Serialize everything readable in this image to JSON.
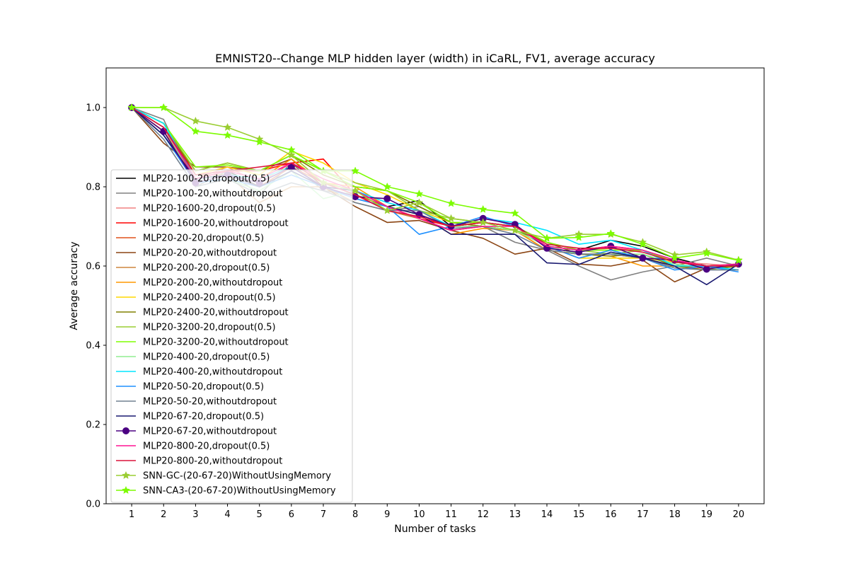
{
  "chart_data": {
    "type": "line",
    "title": "EMNIST20--Change MLP hidden layer (width) in iCaRL, FV1, average accuracy",
    "xlabel": "Number of tasks",
    "ylabel": "Average accuracy",
    "x": [
      1,
      2,
      3,
      4,
      5,
      6,
      7,
      8,
      9,
      10,
      11,
      12,
      13,
      14,
      15,
      16,
      17,
      18,
      19,
      20
    ],
    "xlim": [
      0.2,
      20.8
    ],
    "ylim": [
      0.0,
      1.1
    ],
    "yticks": [
      0.0,
      0.2,
      0.4,
      0.6,
      0.8,
      1.0
    ],
    "ytick_labels": [
      "0.0",
      "0.2",
      "0.4",
      "0.6",
      "0.8",
      "1.0"
    ],
    "grid": false,
    "legend_position": "center-left",
    "series": [
      {
        "name": "MLP20-100-20,dropout(0.5)",
        "color": "#000000",
        "marker": "none",
        "values": [
          1.0,
          0.93,
          0.82,
          0.84,
          0.8,
          0.85,
          0.8,
          0.79,
          0.75,
          0.765,
          0.7,
          0.71,
          0.7,
          0.65,
          0.64,
          0.665,
          0.65,
          0.62,
          0.6,
          0.6
        ]
      },
      {
        "name": "MLP20-100-20,withoutdropout",
        "color": "#808080",
        "marker": "none",
        "values": [
          1.0,
          0.97,
          0.8,
          0.84,
          0.78,
          0.86,
          0.79,
          0.78,
          0.74,
          0.75,
          0.71,
          0.7,
          0.66,
          0.64,
          0.6,
          0.565,
          0.585,
          0.6,
          0.62,
          0.6
        ]
      },
      {
        "name": "MLP20-1600-20,dropout(0.5)",
        "color": "#f08080",
        "marker": "none",
        "values": [
          1.0,
          0.95,
          0.82,
          0.85,
          0.81,
          0.86,
          0.81,
          0.79,
          0.75,
          0.73,
          0.7,
          0.71,
          0.7,
          0.65,
          0.64,
          0.645,
          0.64,
          0.61,
          0.605,
          0.6
        ]
      },
      {
        "name": "MLP20-1600-20,withoutdropout",
        "color": "#ff0000",
        "marker": "none",
        "values": [
          1.0,
          0.96,
          0.83,
          0.84,
          0.84,
          0.86,
          0.87,
          0.78,
          0.74,
          0.72,
          0.7,
          0.71,
          0.7,
          0.66,
          0.64,
          0.65,
          0.64,
          0.615,
          0.6,
          0.605
        ]
      },
      {
        "name": "MLP20-20-20,dropout(0.5)",
        "color": "#e0501c",
        "marker": "none",
        "values": [
          1.0,
          0.94,
          0.82,
          0.83,
          0.8,
          0.85,
          0.81,
          0.78,
          0.75,
          0.72,
          0.69,
          0.7,
          0.69,
          0.64,
          0.63,
          0.63,
          0.62,
          0.6,
          0.595,
          0.6
        ]
      },
      {
        "name": "MLP20-20-20,withoutdropout",
        "color": "#8b4513",
        "marker": "none",
        "values": [
          1.0,
          0.91,
          0.85,
          0.85,
          0.84,
          0.87,
          0.8,
          0.75,
          0.71,
          0.715,
          0.69,
          0.67,
          0.63,
          0.645,
          0.605,
          0.6,
          0.615,
          0.56,
          0.595,
          0.6
        ]
      },
      {
        "name": "MLP20-200-20,dropout(0.5)",
        "color": "#cd853f",
        "marker": "none",
        "values": [
          1.0,
          0.94,
          0.83,
          0.83,
          0.76,
          0.8,
          0.8,
          0.76,
          0.74,
          0.72,
          0.69,
          0.7,
          0.69,
          0.65,
          0.63,
          0.63,
          0.62,
          0.6,
          0.6,
          0.6
        ]
      },
      {
        "name": "MLP20-200-20,withoutdropout",
        "color": "#ff9900",
        "marker": "none",
        "values": [
          1.0,
          0.94,
          0.82,
          0.84,
          0.82,
          0.87,
          0.81,
          0.8,
          0.75,
          0.73,
          0.68,
          0.695,
          0.69,
          0.64,
          0.63,
          0.625,
          0.6,
          0.6,
          0.59,
          0.6
        ]
      },
      {
        "name": "MLP20-2400-20,dropout(0.5)",
        "color": "#ffd700",
        "marker": "none",
        "values": [
          1.0,
          0.95,
          0.83,
          0.85,
          0.83,
          0.89,
          0.86,
          0.81,
          0.78,
          0.74,
          0.71,
          0.7,
          0.69,
          0.65,
          0.62,
          0.62,
          0.62,
          0.61,
          0.6,
          0.605
        ]
      },
      {
        "name": "MLP20-2400-20,withoutdropout",
        "color": "#808000",
        "marker": "none",
        "values": [
          1.0,
          0.95,
          0.84,
          0.86,
          0.84,
          0.88,
          0.83,
          0.8,
          0.79,
          0.75,
          0.71,
          0.7,
          0.69,
          0.66,
          0.63,
          0.625,
          0.63,
          0.6,
          0.59,
          0.6
        ]
      },
      {
        "name": "MLP20-3200-20,dropout(0.5)",
        "color": "#9acd32",
        "marker": "none",
        "values": [
          1.0,
          0.96,
          0.84,
          0.86,
          0.84,
          0.88,
          0.84,
          0.81,
          0.79,
          0.74,
          0.72,
          0.71,
          0.7,
          0.66,
          0.64,
          0.63,
          0.64,
          0.61,
          0.6,
          0.605
        ]
      },
      {
        "name": "MLP20-3200-20,withoutdropout",
        "color": "#7fff00",
        "marker": "none",
        "values": [
          1.0,
          0.96,
          0.85,
          0.855,
          0.84,
          0.88,
          0.84,
          0.8,
          0.79,
          0.76,
          0.71,
          0.71,
          0.7,
          0.66,
          0.64,
          0.64,
          0.64,
          0.61,
          0.6,
          0.6
        ]
      },
      {
        "name": "MLP20-400-20,dropout(0.5)",
        "color": "#90ee90",
        "marker": "none",
        "values": [
          1.0,
          0.95,
          0.81,
          0.82,
          0.79,
          0.84,
          0.77,
          0.79,
          0.75,
          0.73,
          0.7,
          0.7,
          0.69,
          0.65,
          0.63,
          0.63,
          0.63,
          0.605,
          0.595,
          0.59
        ]
      },
      {
        "name": "MLP20-400-20,withoutdropout",
        "color": "#00e5ff",
        "marker": "none",
        "values": [
          1.0,
          0.96,
          0.82,
          0.83,
          0.82,
          0.85,
          0.8,
          0.79,
          0.76,
          0.74,
          0.7,
          0.72,
          0.71,
          0.69,
          0.655,
          0.665,
          0.64,
          0.6,
          0.6,
          0.59
        ]
      },
      {
        "name": "MLP20-50-20,dropout(0.5)",
        "color": "#1e90ff",
        "marker": "none",
        "values": [
          1.0,
          0.93,
          0.81,
          0.82,
          0.8,
          0.83,
          0.8,
          0.77,
          0.75,
          0.68,
          0.7,
          0.725,
          0.7,
          0.65,
          0.62,
          0.64,
          0.62,
          0.59,
          0.6,
          0.585
        ]
      },
      {
        "name": "MLP20-50-20,withoutdropout",
        "color": "#708090",
        "marker": "none",
        "values": [
          1.0,
          0.92,
          0.8,
          0.82,
          0.78,
          0.81,
          0.79,
          0.76,
          0.74,
          0.74,
          0.695,
          0.7,
          0.68,
          0.64,
          0.63,
          0.63,
          0.62,
          0.595,
          0.59,
          0.59
        ]
      },
      {
        "name": "MLP20-67-20,dropout(0.5)",
        "color": "#191970",
        "marker": "none",
        "values": [
          1.0,
          0.93,
          0.82,
          0.83,
          0.8,
          0.84,
          0.8,
          0.79,
          0.75,
          0.73,
          0.68,
          0.68,
          0.68,
          0.608,
          0.604,
          0.635,
          0.62,
          0.6,
          0.553,
          0.605
        ]
      },
      {
        "name": "MLP20-67-20,withoutdropout",
        "color": "#4b0082",
        "marker": "circle",
        "values": [
          1.0,
          0.94,
          0.81,
          0.83,
          0.81,
          0.85,
          0.8,
          0.775,
          0.77,
          0.73,
          0.7,
          0.72,
          0.705,
          0.645,
          0.635,
          0.65,
          0.62,
          0.615,
          0.592,
          0.605
        ]
      },
      {
        "name": "MLP20-800-20,dropout(0.5)",
        "color": "#ff1493",
        "marker": "none",
        "values": [
          1.0,
          0.95,
          0.82,
          0.84,
          0.82,
          0.86,
          0.82,
          0.79,
          0.75,
          0.72,
          0.69,
          0.7,
          0.7,
          0.65,
          0.64,
          0.65,
          0.64,
          0.615,
          0.6,
          0.605
        ]
      },
      {
        "name": "MLP20-800-20,withoutdropout",
        "color": "#dc143c",
        "marker": "none",
        "values": [
          1.0,
          0.95,
          0.83,
          0.84,
          0.85,
          0.86,
          0.81,
          0.78,
          0.74,
          0.725,
          0.7,
          0.71,
          0.7,
          0.655,
          0.645,
          0.645,
          0.635,
          0.61,
          0.6,
          0.6
        ]
      },
      {
        "name": "SNN-GC-(20-67-20)WithoutUsingMemory",
        "color": "#9acd32",
        "marker": "star",
        "values": [
          1.0,
          1.0,
          0.966,
          0.95,
          0.92,
          0.88,
          0.81,
          0.79,
          0.74,
          0.76,
          0.72,
          0.71,
          0.69,
          0.67,
          0.68,
          0.68,
          0.66,
          0.628,
          0.636,
          0.615
        ]
      },
      {
        "name": "SNN-CA3-(20-67-20)WithoutUsingMemory",
        "color": "#7cfc00",
        "marker": "star",
        "values": [
          1.0,
          1.0,
          0.94,
          0.93,
          0.913,
          0.893,
          0.84,
          0.84,
          0.8,
          0.782,
          0.758,
          0.743,
          0.733,
          0.67,
          0.672,
          0.682,
          0.655,
          0.62,
          0.632,
          0.614
        ]
      }
    ]
  }
}
